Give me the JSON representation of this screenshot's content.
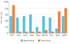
{
  "chart_data": {
    "type": "bar",
    "y_label": "Percent (%)",
    "categories": [
      "BeT",
      "Abi",
      "Gbl",
      "Koa",
      "Boy",
      "MeTrk",
      "Rlk",
      "Bell",
      "SpRt"
    ],
    "series": [
      {
        "name": "Naturalnie",
        "color": "#5bc0de",
        "values": [
          55,
          50,
          55,
          60,
          20,
          55,
          50,
          15,
          55
        ]
      },
      {
        "name": "Sztucznie",
        "color": "#f07f3c",
        "values": [
          90,
          5,
          5,
          5,
          5,
          10,
          5,
          70,
          80
        ]
      }
    ],
    "ylim": [
      0,
      100
    ],
    "yticks": [
      0,
      20,
      40,
      60,
      80,
      100
    ],
    "grid": true,
    "legend": "bottom"
  }
}
